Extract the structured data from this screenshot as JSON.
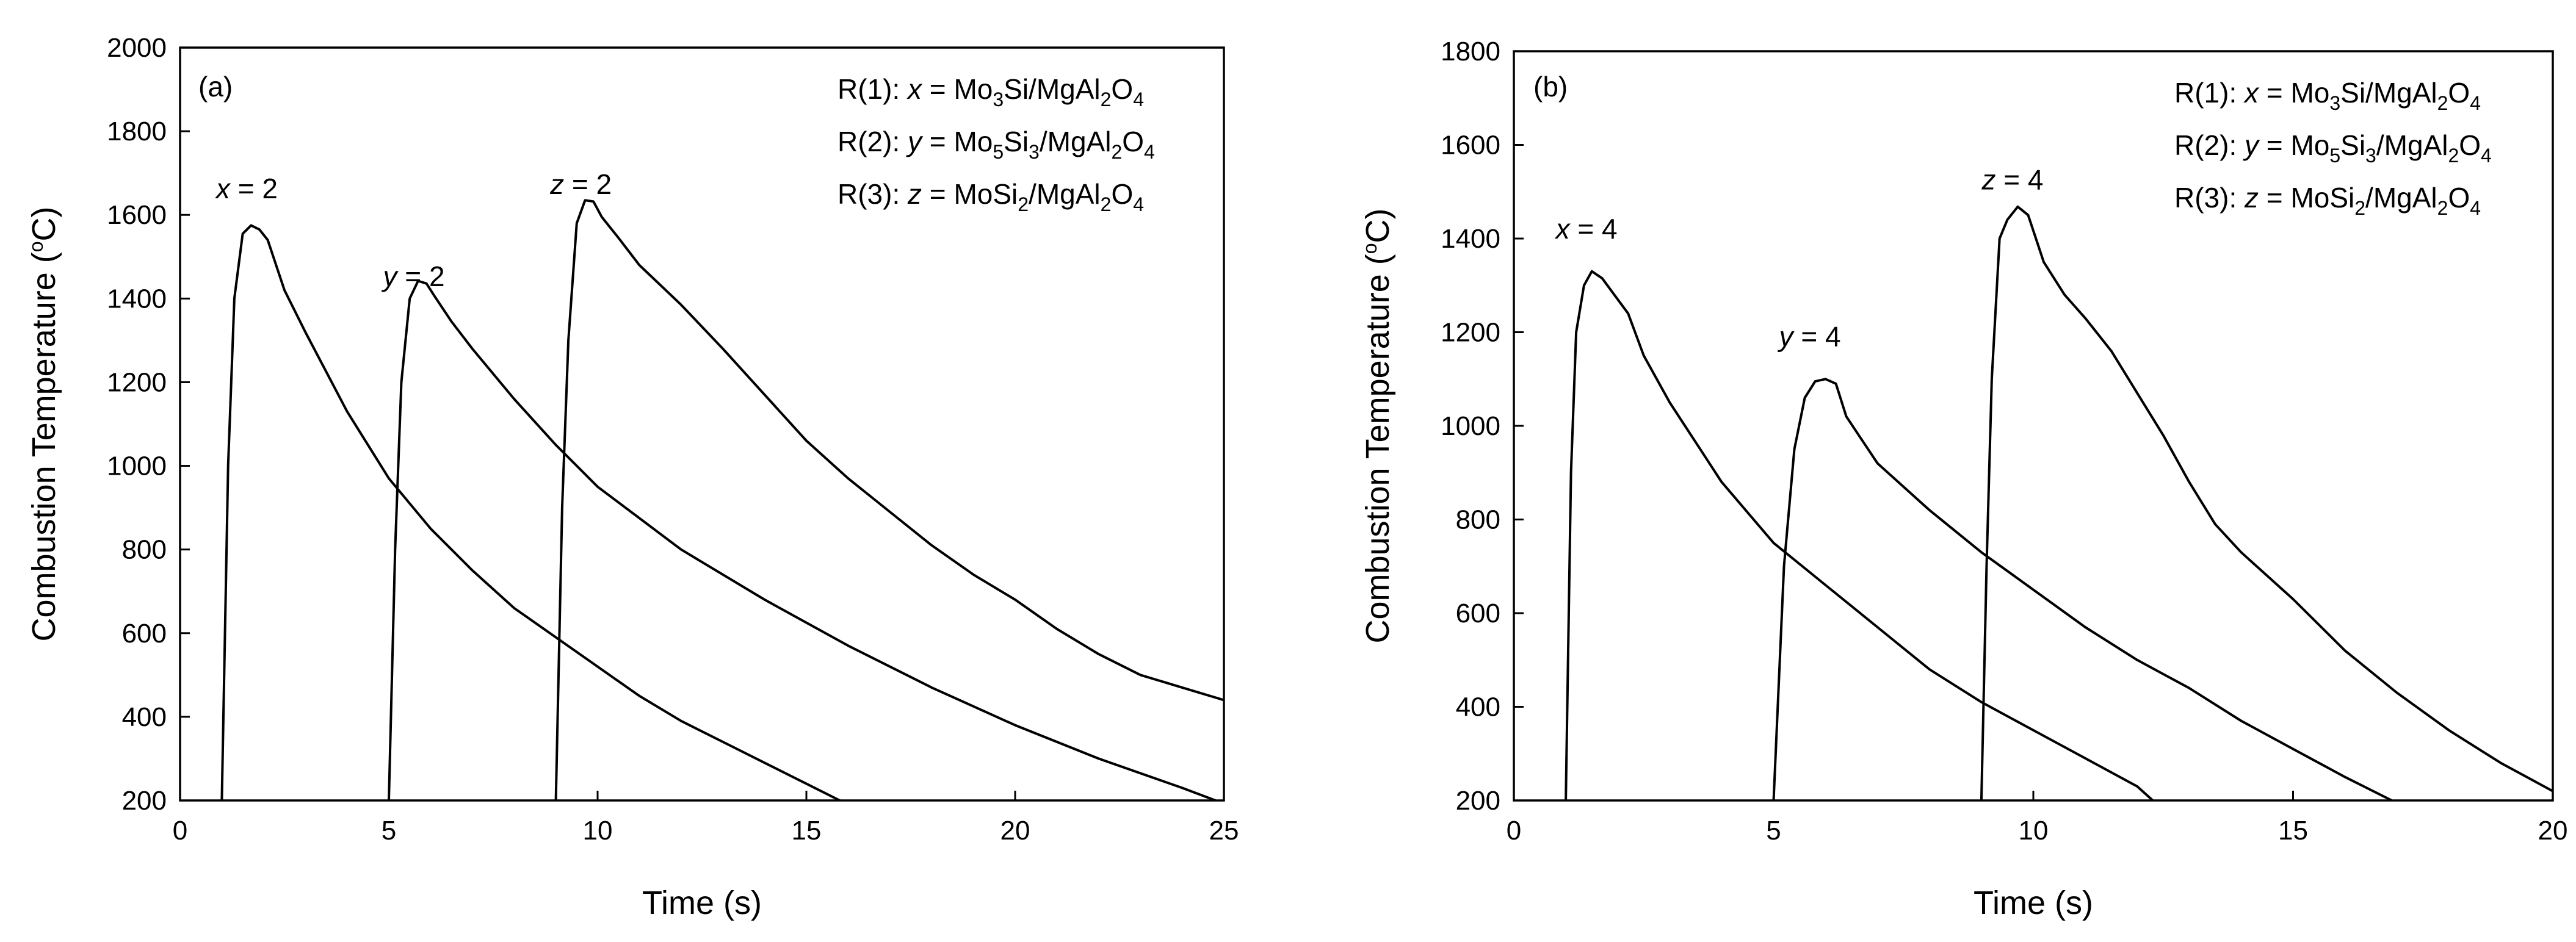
{
  "chart_data": [
    {
      "type": "line",
      "panel_label": "(a)",
      "xlabel": "Time (s)",
      "ylabel": "Combustion Temperature (°C)",
      "xlim": [
        0,
        25
      ],
      "ylim": [
        200,
        2000
      ],
      "xticks": [
        0,
        5,
        10,
        15,
        20,
        25
      ],
      "yticks": [
        200,
        400,
        600,
        800,
        1000,
        1200,
        1400,
        1600,
        1800,
        2000
      ],
      "grid": false,
      "legend_position": "top-right",
      "legend": [
        {
          "prefix": "R(1): ",
          "var": "x",
          "formula": [
            [
              "Mo",
              ""
            ],
            [
              "3",
              "sub"
            ],
            [
              "Si/MgAl",
              ""
            ],
            [
              "2",
              "sub"
            ],
            [
              "O",
              ""
            ],
            [
              "4",
              "sub"
            ]
          ]
        },
        {
          "prefix": "R(2): ",
          "var": "y",
          "formula": [
            [
              "Mo",
              ""
            ],
            [
              "5",
              "sub"
            ],
            [
              "Si",
              ""
            ],
            [
              "3",
              "sub"
            ],
            [
              "/MgAl",
              ""
            ],
            [
              "2",
              "sub"
            ],
            [
              "O",
              ""
            ],
            [
              "4",
              "sub"
            ]
          ]
        },
        {
          "prefix": "R(3): ",
          "var": "z",
          "formula": [
            [
              "MoSi",
              ""
            ],
            [
              "2",
              "sub"
            ],
            [
              "/MgAl",
              ""
            ],
            [
              "2",
              "sub"
            ],
            [
              "O",
              ""
            ],
            [
              "4",
              "sub"
            ]
          ]
        }
      ],
      "series": [
        {
          "label": {
            "var": "x",
            "text": " = 2",
            "at": [
              1.6,
              1640
            ]
          },
          "x": [
            1.0,
            1.15,
            1.3,
            1.5,
            1.7,
            1.9,
            2.1,
            2.5,
            3.0,
            4.0,
            5.0,
            6.0,
            7.0,
            8.0,
            9.0,
            10.0,
            11.0,
            12.0,
            13.0,
            14.0,
            15.0,
            15.8
          ],
          "y": [
            200,
            1000,
            1400,
            1555,
            1575,
            1565,
            1540,
            1420,
            1320,
            1130,
            970,
            850,
            750,
            660,
            590,
            520,
            450,
            390,
            340,
            290,
            240,
            200
          ]
        },
        {
          "label": {
            "var": "y",
            "text": " = 2",
            "at": [
              5.6,
              1430
            ]
          },
          "x": [
            5.0,
            5.15,
            5.3,
            5.5,
            5.7,
            5.9,
            6.1,
            6.5,
            7.0,
            8.0,
            9.0,
            10.0,
            12.0,
            14.0,
            16.0,
            18.0,
            20.0,
            22.0,
            24.0,
            24.8
          ],
          "y": [
            200,
            800,
            1200,
            1400,
            1442,
            1436,
            1405,
            1345,
            1280,
            1160,
            1050,
            950,
            800,
            680,
            570,
            470,
            380,
            300,
            230,
            200
          ]
        },
        {
          "label": {
            "var": "z",
            "text": " = 2",
            "at": [
              9.6,
              1650
            ]
          },
          "x": [
            9.0,
            9.15,
            9.3,
            9.5,
            9.7,
            9.9,
            10.1,
            10.5,
            11.0,
            12.0,
            13.0,
            14.0,
            15.0,
            16.0,
            17.0,
            18.0,
            19.0,
            20.0,
            21.0,
            22.0,
            23.0,
            24.0,
            25.0
          ],
          "y": [
            200,
            900,
            1300,
            1580,
            1635,
            1632,
            1595,
            1545,
            1480,
            1385,
            1280,
            1170,
            1060,
            970,
            890,
            810,
            740,
            680,
            610,
            550,
            500,
            470,
            440
          ]
        }
      ]
    },
    {
      "type": "line",
      "panel_label": "(b)",
      "xlabel": "Time (s)",
      "ylabel": "Combustion Temperature (°C)",
      "xlim": [
        0,
        20
      ],
      "ylim": [
        200,
        1800
      ],
      "xticks": [
        0,
        5,
        10,
        15,
        20
      ],
      "yticks": [
        200,
        400,
        600,
        800,
        1000,
        1200,
        1400,
        1600,
        1800
      ],
      "grid": false,
      "legend_position": "top-right",
      "legend": [
        {
          "prefix": "R(1): ",
          "var": "x",
          "formula": [
            [
              "Mo",
              ""
            ],
            [
              "3",
              "sub"
            ],
            [
              "Si/MgAl",
              ""
            ],
            [
              "2",
              "sub"
            ],
            [
              "O",
              ""
            ],
            [
              "4",
              "sub"
            ]
          ]
        },
        {
          "prefix": "R(2): ",
          "var": "y",
          "formula": [
            [
              "Mo",
              ""
            ],
            [
              "5",
              "sub"
            ],
            [
              "Si",
              ""
            ],
            [
              "3",
              "sub"
            ],
            [
              "/MgAl",
              ""
            ],
            [
              "2",
              "sub"
            ],
            [
              "O",
              ""
            ],
            [
              "4",
              "sub"
            ]
          ]
        },
        {
          "prefix": "R(3): ",
          "var": "z",
          "formula": [
            [
              "MoSi",
              ""
            ],
            [
              "2",
              "sub"
            ],
            [
              "/MgAl",
              ""
            ],
            [
              "2",
              "sub"
            ],
            [
              "O",
              ""
            ],
            [
              "4",
              "sub"
            ]
          ]
        }
      ],
      "series": [
        {
          "label": {
            "var": "x",
            "text": " = 4",
            "at": [
              1.4,
              1400
            ]
          },
          "x": [
            1.0,
            1.1,
            1.2,
            1.35,
            1.5,
            1.7,
            1.9,
            2.2,
            2.5,
            3.0,
            4.0,
            5.0,
            6.0,
            7.0,
            8.0,
            9.0,
            10.0,
            11.0,
            12.0,
            12.3
          ],
          "y": [
            200,
            900,
            1200,
            1300,
            1330,
            1315,
            1285,
            1240,
            1150,
            1050,
            880,
            750,
            660,
            570,
            480,
            410,
            350,
            290,
            230,
            200
          ]
        },
        {
          "label": {
            "var": "y",
            "text": " = 4",
            "at": [
              5.7,
              1170
            ]
          },
          "x": [
            5.0,
            5.2,
            5.4,
            5.6,
            5.8,
            6.0,
            6.2,
            6.4,
            7.0,
            8.0,
            9.0,
            10.0,
            11.0,
            12.0,
            13.0,
            14.0,
            15.0,
            16.0,
            16.9
          ],
          "y": [
            200,
            700,
            950,
            1060,
            1095,
            1100,
            1090,
            1020,
            920,
            820,
            730,
            650,
            570,
            500,
            440,
            370,
            310,
            250,
            200
          ]
        },
        {
          "label": {
            "var": "z",
            "text": " = 4",
            "at": [
              9.6,
              1505
            ]
          },
          "x": [
            9.0,
            9.1,
            9.2,
            9.35,
            9.5,
            9.7,
            9.9,
            10.2,
            10.6,
            11.0,
            11.5,
            12.0,
            12.5,
            13.0,
            13.5,
            14.0,
            15.0,
            16.0,
            17.0,
            18.0,
            19.0,
            20.0
          ],
          "y": [
            200,
            700,
            1100,
            1400,
            1440,
            1468,
            1450,
            1350,
            1280,
            1230,
            1160,
            1070,
            980,
            880,
            790,
            730,
            630,
            520,
            430,
            350,
            280,
            220
          ]
        }
      ]
    }
  ]
}
